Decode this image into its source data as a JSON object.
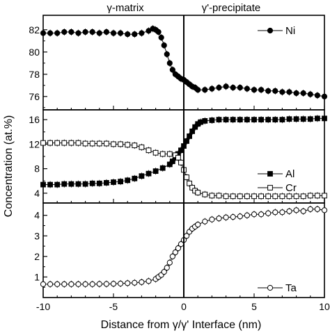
{
  "figure": {
    "region_labels": [
      "γ-matrix",
      "γ'-precipitate"
    ],
    "ylabel": "Concentration (at.%)",
    "xlabel": "Distance from γ/γ' Interface (nm)"
  },
  "chart_data": [
    {
      "type": "line",
      "panel": "top",
      "xlim": [
        -10,
        10
      ],
      "ylim": [
        74.8,
        83.3
      ],
      "yticks": [
        "76",
        "78",
        "80",
        "82"
      ],
      "ytick_values": [
        76,
        78,
        80,
        82
      ],
      "legend_placement": "top-right",
      "series": [
        {
          "name": "Ni",
          "marker": "filled-circle",
          "x": [
            -10,
            -9.5,
            -9,
            -8.5,
            -8,
            -7.5,
            -7,
            -6.5,
            -6,
            -5.5,
            -5,
            -4.5,
            -4,
            -3.5,
            -3,
            -2.5,
            -2.2,
            -2,
            -1.8,
            -1.6,
            -1.4,
            -1.2,
            -1,
            -0.8,
            -0.6,
            -0.4,
            -0.2,
            0,
            0.2,
            0.4,
            0.6,
            0.8,
            1,
            1.5,
            2,
            2.5,
            3,
            3.5,
            4,
            4.5,
            5,
            5.5,
            6,
            6.5,
            7,
            7.5,
            8,
            8.5,
            9,
            9.5,
            10
          ],
          "y": [
            81.7,
            81.7,
            81.7,
            81.8,
            81.8,
            81.7,
            81.8,
            81.8,
            81.7,
            81.8,
            81.7,
            81.7,
            81.6,
            81.6,
            81.7,
            81.9,
            82.1,
            82.0,
            81.8,
            81.3,
            80.6,
            79.8,
            79.0,
            78.4,
            78.0,
            77.8,
            77.6,
            77.5,
            77.3,
            77.1,
            76.9,
            76.8,
            76.6,
            76.6,
            76.7,
            76.8,
            76.9,
            76.8,
            76.8,
            76.7,
            76.6,
            76.6,
            76.5,
            76.5,
            76.4,
            76.4,
            76.3,
            76.3,
            76.2,
            76.1,
            76.0
          ]
        }
      ]
    },
    {
      "type": "line",
      "panel": "middle",
      "xlim": [
        -10,
        10
      ],
      "ylim": [
        2.4,
        17.6
      ],
      "yticks": [
        "4",
        "8",
        "12",
        "16"
      ],
      "ytick_values": [
        4,
        8,
        12,
        16
      ],
      "legend_placement": "right",
      "series": [
        {
          "name": "Al",
          "marker": "filled-square",
          "x": [
            -10,
            -9.5,
            -9,
            -8.5,
            -8,
            -7.5,
            -7,
            -6.5,
            -6,
            -5.5,
            -5,
            -4.5,
            -4,
            -3.5,
            -3,
            -2.5,
            -2,
            -1.5,
            -1,
            -0.8,
            -0.6,
            -0.4,
            -0.2,
            0,
            0.2,
            0.4,
            0.6,
            0.8,
            1,
            1.2,
            1.5,
            2,
            2.5,
            3,
            3.5,
            4,
            4.5,
            5,
            5.5,
            6,
            6.5,
            7,
            7.5,
            8,
            8.5,
            9,
            9.5,
            10
          ],
          "y": [
            5.4,
            5.4,
            5.4,
            5.5,
            5.5,
            5.5,
            5.5,
            5.6,
            5.6,
            5.7,
            5.8,
            5.9,
            6.1,
            6.4,
            6.8,
            7.2,
            7.6,
            8.1,
            8.7,
            9.2,
            9.8,
            10.4,
            11.0,
            11.7,
            12.5,
            13.3,
            14.1,
            14.8,
            15.3,
            15.6,
            15.8,
            15.9,
            16.0,
            16.0,
            16.0,
            16.0,
            16.0,
            16.0,
            16.0,
            16.0,
            16.0,
            16.0,
            16.1,
            16.1,
            16.1,
            16.1,
            16.2,
            16.2
          ]
        },
        {
          "name": "Cr",
          "marker": "open-square",
          "x": [
            -10,
            -9.5,
            -9,
            -8.5,
            -8,
            -7.5,
            -7,
            -6.5,
            -6,
            -5.5,
            -5,
            -4.5,
            -4,
            -3.5,
            -3,
            -2.5,
            -2,
            -1.5,
            -1,
            -0.6,
            -0.4,
            -0.2,
            0,
            0.2,
            0.4,
            0.6,
            0.8,
            1,
            1.5,
            2,
            2.5,
            3,
            3.5,
            4,
            4.5,
            5,
            5.5,
            6,
            6.5,
            7,
            7.5,
            8,
            8.5,
            9,
            9.5,
            10
          ],
          "y": [
            12.2,
            12.2,
            12.2,
            12.2,
            12.2,
            12.2,
            12.1,
            12.1,
            12.1,
            12.1,
            12.0,
            12.0,
            11.9,
            11.8,
            11.5,
            11.0,
            10.6,
            10.4,
            10.4,
            10.2,
            9.8,
            9.0,
            7.8,
            6.6,
            5.6,
            4.9,
            4.4,
            4.1,
            3.8,
            3.6,
            3.6,
            3.5,
            3.5,
            3.5,
            3.5,
            3.5,
            3.5,
            3.5,
            3.5,
            3.5,
            3.5,
            3.5,
            3.5,
            3.6,
            3.6,
            3.6
          ]
        }
      ]
    },
    {
      "type": "line",
      "panel": "bottom",
      "xlim": [
        -10,
        10
      ],
      "ylim": [
        0,
        4.6
      ],
      "yticks": [
        "1",
        "2",
        "3",
        "4"
      ],
      "ytick_values": [
        1,
        2,
        3,
        4
      ],
      "xticks": [
        "-10",
        "-5",
        "0",
        "5",
        "10"
      ],
      "xtick_values": [
        -10,
        -5,
        0,
        5,
        10
      ],
      "legend_placement": "bottom-right",
      "series": [
        {
          "name": "Ta",
          "marker": "open-circle",
          "x": [
            -10,
            -9.5,
            -9,
            -8.5,
            -8,
            -7.5,
            -7,
            -6.5,
            -6,
            -5.5,
            -5,
            -4.5,
            -4,
            -3.5,
            -3,
            -2.5,
            -2,
            -1.8,
            -1.6,
            -1.4,
            -1.2,
            -1,
            -0.8,
            -0.6,
            -0.4,
            -0.2,
            0,
            0.2,
            0.4,
            0.6,
            0.8,
            1,
            1.5,
            2,
            2.5,
            3,
            3.5,
            4,
            4.5,
            5,
            5.5,
            6,
            6.5,
            7,
            7.5,
            8,
            8.5,
            9,
            9.5,
            10
          ],
          "y": [
            0.65,
            0.65,
            0.65,
            0.65,
            0.65,
            0.65,
            0.65,
            0.65,
            0.66,
            0.66,
            0.67,
            0.68,
            0.7,
            0.72,
            0.75,
            0.8,
            0.9,
            1.0,
            1.1,
            1.25,
            1.45,
            1.7,
            2.0,
            2.2,
            2.4,
            2.6,
            2.8,
            3.0,
            3.2,
            3.35,
            3.45,
            3.55,
            3.7,
            3.8,
            3.85,
            3.9,
            3.92,
            3.95,
            4.0,
            4.05,
            4.05,
            4.1,
            4.15,
            4.15,
            4.2,
            4.25,
            4.2,
            4.3,
            4.3,
            4.25
          ]
        }
      ]
    }
  ]
}
